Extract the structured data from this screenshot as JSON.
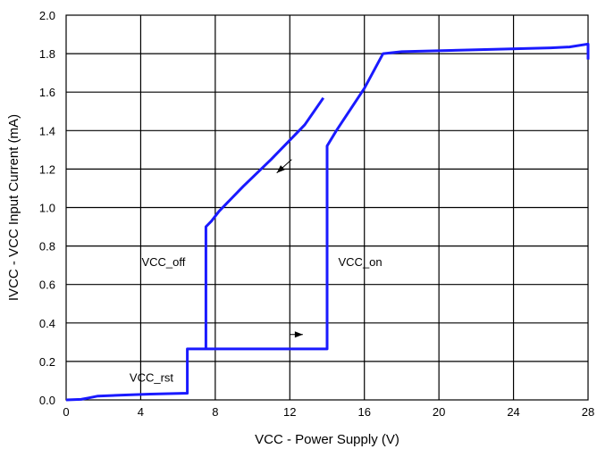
{
  "chart_data": {
    "type": "line",
    "xlabel": "VCC - Power Supply (V)",
    "ylabel": "IVCC - VCC Input Current (mA)",
    "xlim": [
      0,
      28
    ],
    "ylim": [
      0,
      2.0
    ],
    "x_ticks": [
      0,
      4,
      8,
      12,
      16,
      20,
      24,
      28
    ],
    "x_tick_labels": [
      "0",
      "4",
      "8",
      "12",
      "16",
      "20",
      "24",
      "28"
    ],
    "y_ticks": [
      0,
      0.2,
      0.4,
      0.6,
      0.8,
      1.0,
      1.2,
      1.4,
      1.6,
      1.8,
      2.0
    ],
    "y_tick_labels": [
      "0.0",
      "0.2",
      "0.4",
      "0.6",
      "0.8",
      "1.0",
      "1.2",
      "1.4",
      "1.6",
      "1.8",
      "2.0"
    ],
    "grid": true,
    "line_color": "#1a1aff",
    "series": [
      {
        "values_xy": [
          [
            0,
            0
          ],
          [
            0.8,
            0.003
          ],
          [
            1.2,
            0.01
          ],
          [
            1.7,
            0.02
          ],
          [
            3,
            0.025
          ],
          [
            4.5,
            0.03
          ],
          [
            6.5,
            0.035
          ],
          [
            6.5,
            0.265
          ],
          [
            7.5,
            0.265
          ],
          [
            14,
            0.265
          ],
          [
            14,
            1.32
          ],
          [
            14.5,
            1.4
          ],
          [
            16,
            1.62
          ],
          [
            17,
            1.8
          ],
          [
            18,
            1.81
          ],
          [
            22,
            1.82
          ],
          [
            26,
            1.83
          ],
          [
            27,
            1.835
          ],
          [
            28,
            1.85
          ],
          [
            28,
            1.77
          ]
        ]
      },
      {
        "values_xy": [
          [
            13.8,
            1.57
          ],
          [
            12.8,
            1.43
          ],
          [
            11,
            1.25
          ],
          [
            9.5,
            1.11
          ],
          [
            8.2,
            0.98
          ],
          [
            7.8,
            0.93
          ],
          [
            7.5,
            0.9
          ],
          [
            7.5,
            0.265
          ]
        ]
      }
    ],
    "annotations": [
      {
        "text": "VCC_off",
        "x": 4.05,
        "y": 0.6955
      },
      {
        "text": "VCC_on",
        "x": 14.6,
        "y": 0.6955
      },
      {
        "text": "VCC_rst",
        "x": 3.4,
        "y": 0.0955
      }
    ],
    "arrows": [
      {
        "from": [
          12,
          0.34
        ],
        "to": [
          12.7,
          0.34
        ]
      },
      {
        "from": [
          12.1,
          1.25
        ],
        "to": [
          11.3,
          1.18
        ]
      }
    ]
  }
}
